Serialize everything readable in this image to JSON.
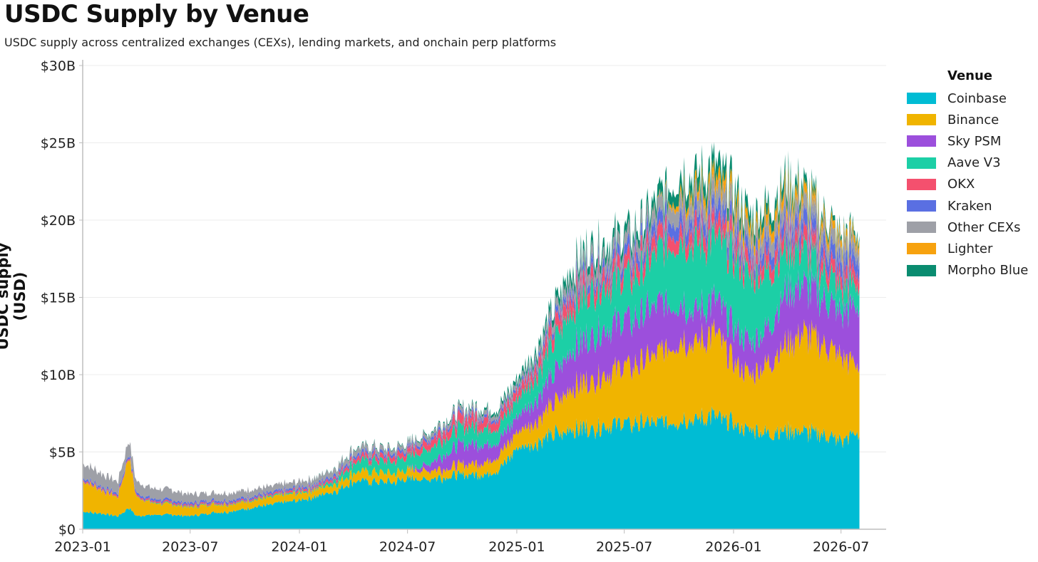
{
  "chart_data": {
    "type": "area",
    "stacked": true,
    "title": "USDC Supply by Venue",
    "subtitle": "USDC supply across centralized exchanges (CEXs), lending markets, and onchain perp platforms",
    "xlabel": "",
    "ylabel": "USDC supply (USD)",
    "ylim": [
      0,
      30000000000
    ],
    "yticks": [
      {
        "value": 0,
        "label": "$0"
      },
      {
        "value": 5000000000,
        "label": "$5B"
      },
      {
        "value": 10000000000,
        "label": "$10B"
      },
      {
        "value": 15000000000,
        "label": "$15B"
      },
      {
        "value": 20000000000,
        "label": "$20B"
      },
      {
        "value": 25000000000,
        "label": "$25B"
      },
      {
        "value": 30000000000,
        "label": "$30B"
      }
    ],
    "xlim": [
      "2023-01-01",
      "2026-09-15"
    ],
    "xticks": [
      "2023-01",
      "2023-07",
      "2024-01",
      "2024-07",
      "2025-01",
      "2025-07",
      "2026-01",
      "2026-07"
    ],
    "grid": "horizontal",
    "legend_title": "Venue",
    "legend_position": "right",
    "x": [
      "2023-01-01",
      "2023-02-01",
      "2023-03-01",
      "2023-03-20",
      "2023-04-01",
      "2023-05-01",
      "2023-06-01",
      "2023-07-01",
      "2023-08-01",
      "2023-09-01",
      "2023-10-01",
      "2023-11-01",
      "2023-12-01",
      "2024-01-01",
      "2024-02-01",
      "2024-03-01",
      "2024-04-01",
      "2024-05-01",
      "2024-06-01",
      "2024-07-01",
      "2024-08-01",
      "2024-09-01",
      "2024-10-01",
      "2024-11-01",
      "2024-12-01",
      "2025-01-01",
      "2025-02-01",
      "2025-03-01",
      "2025-04-01",
      "2025-05-01",
      "2025-06-01",
      "2025-07-01",
      "2025-08-01",
      "2025-09-01",
      "2025-10-01",
      "2025-11-01",
      "2025-12-01",
      "2026-01-01",
      "2026-02-01",
      "2026-03-01",
      "2026-04-01",
      "2026-05-01",
      "2026-06-01",
      "2026-07-01",
      "2026-08-01"
    ],
    "series": [
      {
        "name": "Coinbase",
        "color": "#00bcd4",
        "values": [
          1.2,
          1.1,
          0.9,
          1.5,
          0.9,
          1.0,
          1.0,
          0.9,
          1.1,
          1.2,
          1.4,
          1.6,
          1.8,
          2.0,
          2.3,
          2.6,
          3.3,
          3.3,
          3.3,
          3.4,
          3.5,
          3.6,
          3.7,
          3.8,
          4.0,
          5.6,
          6.0,
          6.5,
          6.8,
          7.0,
          7.2,
          7.3,
          7.3,
          7.4,
          7.5,
          7.6,
          7.8,
          7.2,
          6.8,
          6.7,
          6.8,
          6.7,
          6.6,
          6.1,
          6.6
        ]
      },
      {
        "name": "Binance",
        "color": "#f0b400",
        "values": [
          2.1,
          1.6,
          1.3,
          3.6,
          1.3,
          0.8,
          0.7,
          0.6,
          0.6,
          0.5,
          0.5,
          0.5,
          0.5,
          0.5,
          0.5,
          0.5,
          0.6,
          0.7,
          0.6,
          0.6,
          0.6,
          0.6,
          0.7,
          0.8,
          1.0,
          1.1,
          1.5,
          2.0,
          2.8,
          3.2,
          3.6,
          3.8,
          4.2,
          4.8,
          5.6,
          5.2,
          5.8,
          4.2,
          3.8,
          4.8,
          6.0,
          6.8,
          6.2,
          5.8,
          4.6
        ]
      },
      {
        "name": "Sky PSM",
        "color": "#9c4fdc",
        "values": [
          0,
          0,
          0,
          0,
          0,
          0,
          0,
          0,
          0,
          0,
          0,
          0,
          0,
          0,
          0,
          0,
          0,
          0,
          0,
          0,
          0.4,
          1.0,
          1.4,
          1.3,
          1.0,
          1.1,
          1.5,
          2.0,
          2.6,
          3.0,
          3.2,
          3.2,
          3.3,
          3.3,
          2.6,
          2.2,
          2.3,
          2.4,
          2.2,
          2.5,
          3.7,
          3.3,
          3.2,
          3.0,
          4.2
        ]
      },
      {
        "name": "Aave V3",
        "color": "#1ccfa6",
        "values": [
          0.02,
          0.02,
          0.02,
          0.02,
          0.02,
          0.05,
          0.05,
          0.05,
          0.05,
          0.05,
          0.05,
          0.08,
          0.08,
          0.1,
          0.1,
          0.3,
          0.7,
          0.8,
          0.8,
          0.9,
          1.0,
          1.1,
          1.2,
          1.2,
          1.0,
          1.2,
          1.6,
          2.2,
          2.8,
          3.2,
          3.0,
          3.0,
          3.0,
          3.8,
          4.4,
          4.6,
          4.2,
          4.8,
          4.6,
          3.8,
          3.0,
          2.4,
          1.9,
          1.7,
          1.5
        ]
      },
      {
        "name": "OKX",
        "color": "#f4506e",
        "values": [
          0.1,
          0.1,
          0.1,
          0.1,
          0.1,
          0.1,
          0.1,
          0.1,
          0.1,
          0.1,
          0.1,
          0.1,
          0.12,
          0.15,
          0.15,
          0.2,
          0.3,
          0.3,
          0.35,
          0.4,
          0.5,
          0.6,
          0.7,
          0.7,
          0.6,
          0.6,
          0.7,
          0.9,
          1.0,
          1.0,
          0.9,
          0.9,
          1.0,
          1.0,
          1.0,
          1.1,
          1.0,
          1.0,
          0.9,
          1.0,
          1.0,
          1.0,
          0.9,
          0.9,
          0.9
        ]
      },
      {
        "name": "Kraken",
        "color": "#5a6fe2",
        "values": [
          0.15,
          0.15,
          0.15,
          0.15,
          0.15,
          0.15,
          0.15,
          0.15,
          0.15,
          0.15,
          0.15,
          0.15,
          0.15,
          0.15,
          0.15,
          0.2,
          0.2,
          0.2,
          0.2,
          0.2,
          0.2,
          0.2,
          0.2,
          0.2,
          0.2,
          0.2,
          0.3,
          0.4,
          0.5,
          0.6,
          0.6,
          0.7,
          0.8,
          0.9,
          1.0,
          0.9,
          1.0,
          0.9,
          0.8,
          0.9,
          1.0,
          1.1,
          1.0,
          1.0,
          1.0
        ]
      },
      {
        "name": "Other CEXs",
        "color": "#9ea0a7",
        "values": [
          1.0,
          0.9,
          0.8,
          0.9,
          0.8,
          0.7,
          0.7,
          0.6,
          0.5,
          0.5,
          0.5,
          0.4,
          0.4,
          0.4,
          0.4,
          0.4,
          0.4,
          0.4,
          0.3,
          0.3,
          0.3,
          0.3,
          0.3,
          0.3,
          0.3,
          0.3,
          0.4,
          0.5,
          0.7,
          0.8,
          0.8,
          0.8,
          0.9,
          1.0,
          1.2,
          1.1,
          1.2,
          1.1,
          1.0,
          1.1,
          1.1,
          1.0,
          1.0,
          1.0,
          0.9
        ]
      },
      {
        "name": "Lighter",
        "color": "#f7a20f",
        "values": [
          0,
          0,
          0,
          0,
          0,
          0,
          0,
          0,
          0,
          0,
          0,
          0,
          0,
          0,
          0,
          0,
          0,
          0,
          0,
          0,
          0,
          0,
          0,
          0,
          0,
          0,
          0,
          0,
          0,
          0,
          0,
          0,
          0,
          0.1,
          0.4,
          0.6,
          0.8,
          0.8,
          0.7,
          0.8,
          0.8,
          0.7,
          0.6,
          0.5,
          0.5
        ]
      },
      {
        "name": "Morpho Blue",
        "color": "#0a8c70",
        "values": [
          0,
          0,
          0,
          0,
          0,
          0,
          0,
          0,
          0,
          0,
          0,
          0,
          0,
          0,
          0.02,
          0.03,
          0.05,
          0.05,
          0.05,
          0.06,
          0.08,
          0.1,
          0.1,
          0.15,
          0.2,
          0.3,
          0.4,
          0.5,
          0.6,
          0.6,
          0.6,
          0.6,
          0.6,
          0.8,
          0.9,
          1.0,
          1.0,
          0.9,
          0.8,
          0.8,
          0.8,
          0.6,
          0.4,
          0.3,
          0.3
        ]
      }
    ],
    "value_units": "USD billions"
  }
}
